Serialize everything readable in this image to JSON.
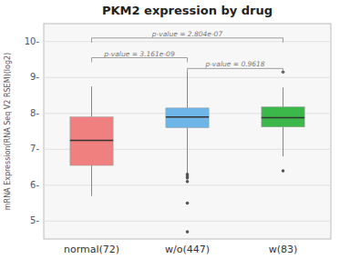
{
  "chart_data": {
    "type": "box",
    "title": "PKM2 expression by drug",
    "ylabel": "mRNA Expression(RNA Seq V2 RSEM)(log2)",
    "categories": [
      "normal(72)",
      "w/o(447)",
      "w(83)"
    ],
    "colors": [
      "#F08080",
      "#6EB5E8",
      "#3CB84A"
    ],
    "median": [
      7.25,
      7.9,
      7.88
    ],
    "q1": [
      6.55,
      7.6,
      7.62
    ],
    "q3": [
      7.9,
      8.15,
      8.18
    ],
    "whislo": [
      5.7,
      6.3,
      6.8
    ],
    "whishi": [
      8.75,
      9.15,
      8.72
    ],
    "fliers": [
      [],
      [
        4.7,
        5.5,
        6.1,
        6.2,
        6.25,
        6.3
      ],
      [
        6.4,
        9.15
      ]
    ],
    "ylim": [
      4.5,
      10.5
    ],
    "yticks": [
      {
        "value": 5,
        "label": "5-"
      },
      {
        "value": 6,
        "label": "6-"
      },
      {
        "value": 7,
        "label": "7-"
      },
      {
        "value": 8,
        "label": "8-"
      },
      {
        "value": 9,
        "label": "9-"
      },
      {
        "value": 10,
        "label": "10-"
      }
    ],
    "grid": true,
    "annotations": [
      {
        "between": [
          "normal(72)",
          "w/o(447)"
        ],
        "y": 9.55,
        "text": "p-value = 3.161e-09"
      },
      {
        "between": [
          "normal(72)",
          "w(83)"
        ],
        "y": 10.1,
        "text": "p-value = 2.804e-07"
      },
      {
        "between": [
          "w/o(447)",
          "w(83)"
        ],
        "y": 9.25,
        "text": "p-value = 0.9618"
      }
    ]
  }
}
